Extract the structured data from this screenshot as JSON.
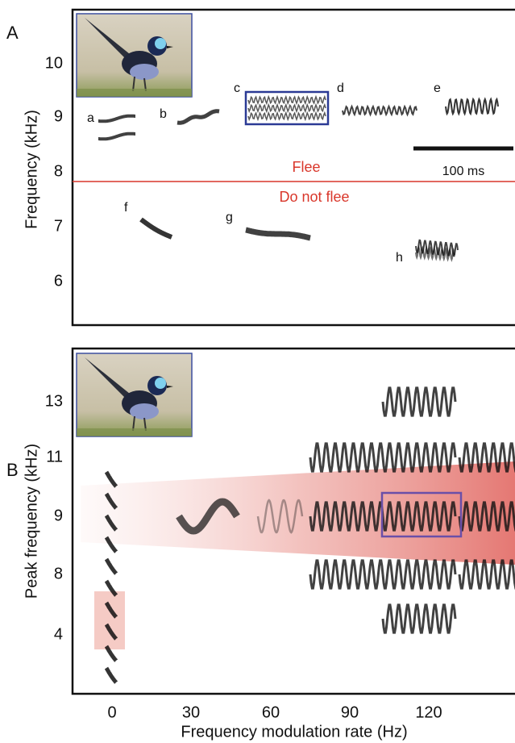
{
  "panel_a": {
    "label": "A",
    "y_axis_label": "Frequency (kHz)",
    "y_ticks": [
      "10",
      "9",
      "8",
      "7",
      "6"
    ],
    "call_labels": [
      "a",
      "b",
      "c",
      "d",
      "e",
      "f",
      "g",
      "h"
    ],
    "flee": "Flee",
    "do_not_flee": "Do not flee",
    "scale_bar": "100 ms"
  },
  "panel_b": {
    "label": "B",
    "y_axis_label": "Peak frequency (kHz)",
    "y_ticks": [
      "13",
      "11",
      "9",
      "8",
      "4"
    ],
    "x_ticks": [
      "0",
      "30",
      "60",
      "90",
      "120"
    ],
    "x_axis_label": "Frequency modulation rate (Hz)"
  }
}
